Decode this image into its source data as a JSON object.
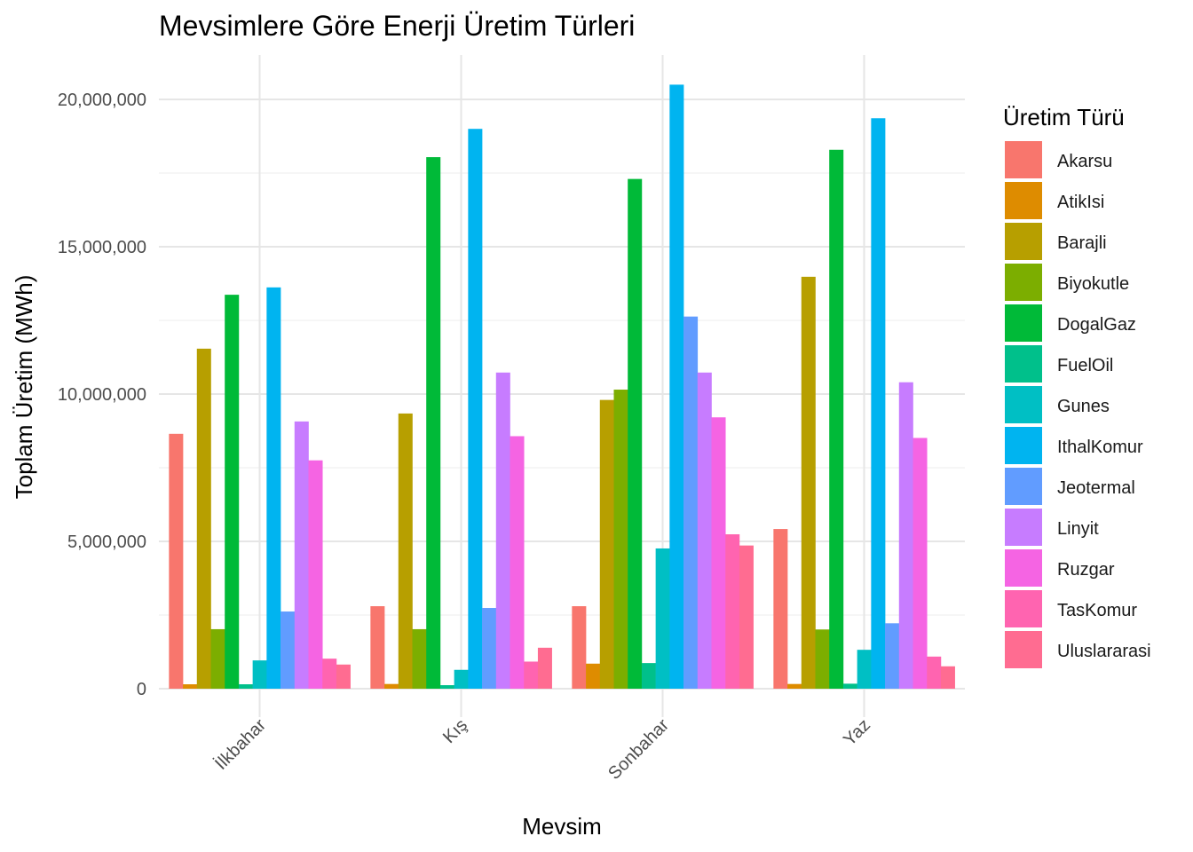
{
  "chart_data": {
    "type": "bar",
    "title": "Mevsimlere Göre Enerji Üretim Türleri",
    "xlabel": "Mevsim",
    "ylabel": "Toplam Üretim (MWh)",
    "categories": [
      "İlkbahar",
      "Kış",
      "Sonbahar",
      "Yaz"
    ],
    "ylim": [
      0,
      22000000
    ],
    "yticks": [
      0,
      5000000,
      10000000,
      15000000,
      20000000
    ],
    "ytick_labels": [
      "0",
      "5,000,000",
      "10,000,000",
      "15,000,000",
      "20,000,000"
    ],
    "grid": true,
    "legend": {
      "title": "Üretim Türü",
      "position": "right"
    },
    "series": [
      {
        "name": "Akarsu",
        "color": "#F8766D",
        "values": [
          8650000,
          2800000,
          2800000,
          5420000
        ]
      },
      {
        "name": "AtikIsi",
        "color": "#DE8C00",
        "values": [
          150000,
          160000,
          850000,
          160000
        ]
      },
      {
        "name": "Barajli",
        "color": "#B79F00",
        "values": [
          11540000,
          9340000,
          9800000,
          13980000
        ]
      },
      {
        "name": "Biyokutle",
        "color": "#7CAE00",
        "values": [
          2020000,
          2020000,
          10150000,
          2010000
        ]
      },
      {
        "name": "DogalGaz",
        "color": "#00BA38",
        "values": [
          13370000,
          18040000,
          17300000,
          18290000
        ]
      },
      {
        "name": "FuelOil",
        "color": "#00C08B",
        "values": [
          150000,
          120000,
          870000,
          170000
        ]
      },
      {
        "name": "Gunes",
        "color": "#00BFC4",
        "values": [
          960000,
          640000,
          4760000,
          1320000
        ]
      },
      {
        "name": "IthalKomur",
        "color": "#00B4F0",
        "values": [
          13620000,
          19000000,
          20500000,
          19360000
        ]
      },
      {
        "name": "Jeotermal",
        "color": "#619CFF",
        "values": [
          2620000,
          2740000,
          12630000,
          2220000
        ]
      },
      {
        "name": "Linyit",
        "color": "#C77CFF",
        "values": [
          9070000,
          10730000,
          10730000,
          10400000
        ]
      },
      {
        "name": "Ruzgar",
        "color": "#F564E3",
        "values": [
          7750000,
          8570000,
          9210000,
          8510000
        ]
      },
      {
        "name": "TasKomur",
        "color": "#FF64B0",
        "values": [
          1020000,
          920000,
          5240000,
          1090000
        ]
      },
      {
        "name": "Uluslararasi",
        "color": "#FF6C91",
        "values": [
          820000,
          1390000,
          4860000,
          760000
        ]
      }
    ]
  }
}
